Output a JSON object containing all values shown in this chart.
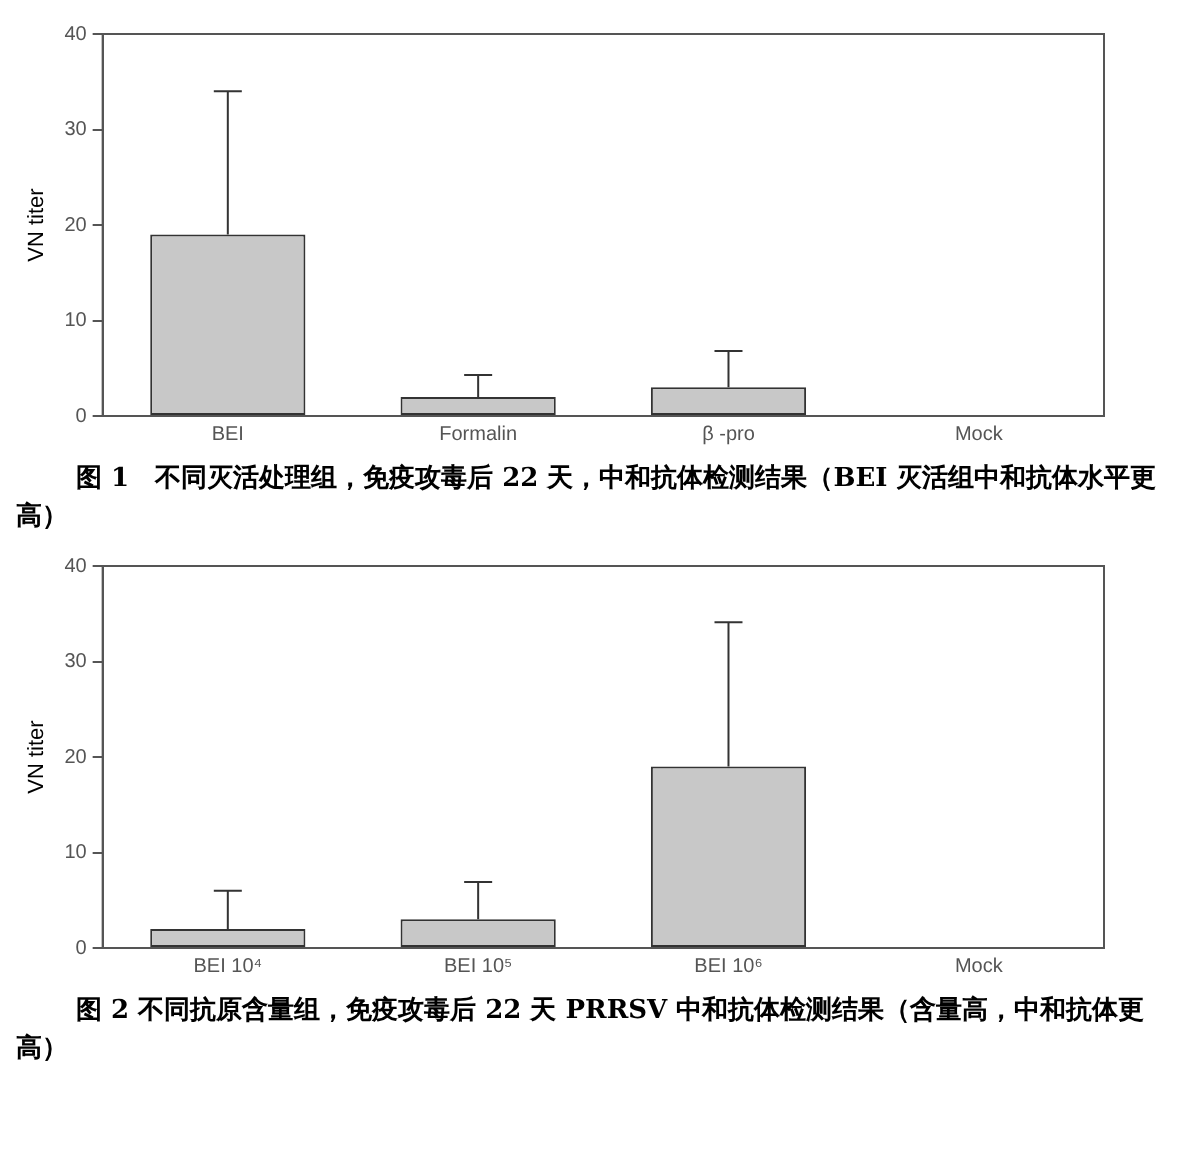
{
  "chart_data": [
    {
      "type": "bar",
      "ylabel": "VN titer",
      "categories": [
        "BEI",
        "Formalin",
        "β -pro",
        "Mock"
      ],
      "values": [
        19,
        2,
        3,
        0
      ],
      "color": "#c8c8c8",
      "errors": [
        [
          19,
          34
        ],
        [
          2,
          4.3
        ],
        [
          3,
          6.8
        ],
        null
      ],
      "ylim": [
        0,
        40
      ],
      "yticks": [
        0,
        10,
        20,
        30,
        40
      ],
      "grid": false,
      "annotations": [
        "图 1　不同灭活处理组，免疫攻毒后 22 天，中和抗体检测结果（BEI 灭活组中和抗体水平更高）"
      ]
    },
    {
      "type": "bar",
      "ylabel": "VN titer",
      "categories": [
        "BEI 10⁴",
        "BEI 10⁵",
        "BEI 10⁶",
        "Mock"
      ],
      "values": [
        2,
        3,
        19,
        0
      ],
      "color": "#c8c8c8",
      "errors": [
        [
          2,
          6
        ],
        [
          3,
          6.9
        ],
        [
          19,
          34.1
        ],
        null
      ],
      "ylim": [
        0,
        40
      ],
      "yticks": [
        0,
        10,
        20,
        30,
        40
      ],
      "grid": false,
      "annotations": [
        "图 2 不同抗原含量组，免疫攻毒后 22 天 PRRSV 中和抗体检测结果（含量高，中和抗体更高）"
      ]
    }
  ]
}
